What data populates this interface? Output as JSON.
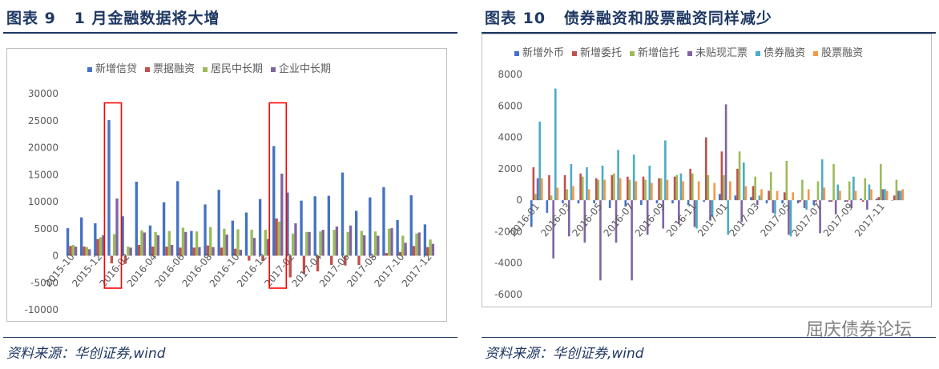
{
  "colors": {
    "blue": "#4472c4",
    "red": "#c0504d",
    "green": "#9bbb59",
    "purple": "#8064a2",
    "cyan": "#4bacc6",
    "orange": "#f79646",
    "highlight": "#ff0000",
    "title": "#1f3864"
  },
  "left": {
    "title": "图表 9   1 月金融数据将大增",
    "source": "资料来源：华创证券,wind",
    "chart_data": {
      "type": "bar",
      "ylim": [
        -10000,
        30000
      ],
      "yticks": [
        "30000",
        "25000",
        "20000",
        "15000",
        "10000",
        "5000",
        "0",
        "-5000",
        "-10000"
      ],
      "xticklabels": [
        "2015-10",
        "2015-12",
        "2016-02",
        "2016-04",
        "2016-06",
        "2016-08",
        "2016-10",
        "2016-12",
        "2017-02",
        "2017-04",
        "2017-06",
        "2017-08",
        "2017-10",
        "2017-12"
      ],
      "categories": [
        "2015-10",
        "2015-11",
        "2015-12",
        "2016-01",
        "2016-02",
        "2016-03",
        "2016-04",
        "2016-05",
        "2016-06",
        "2016-07",
        "2016-08",
        "2016-09",
        "2016-10",
        "2016-11",
        "2016-12",
        "2017-01",
        "2017-02",
        "2017-03",
        "2017-04",
        "2017-05",
        "2017-06",
        "2017-07",
        "2017-08",
        "2017-09",
        "2017-10",
        "2017-11",
        "2017-12"
      ],
      "legend_position": "top",
      "series": [
        {
          "name": "新增信贷",
          "color": "blue",
          "values": [
            5100,
            7100,
            6000,
            25100,
            7300,
            13700,
            5600,
            9900,
            13800,
            4600,
            9500,
            12200,
            6500,
            8000,
            10500,
            20300,
            11700,
            10200,
            11000,
            11100,
            15400,
            8300,
            10800,
            12700,
            6600,
            11200,
            5800
          ]
        },
        {
          "name": "票据融资",
          "color": "red",
          "values": [
            1800,
            1700,
            3100,
            -1400,
            -1500,
            2000,
            1700,
            1700,
            1500,
            1500,
            1900,
            1500,
            1300,
            -900,
            -1000,
            6900,
            -4000,
            -3300,
            -2900,
            -1700,
            -1800,
            -1700,
            -300,
            500,
            700,
            1800,
            1600
          ]
        },
        {
          "name": "居民中长期",
          "color": "green",
          "values": [
            2000,
            1600,
            3400,
            4000,
            1700,
            4700,
            4400,
            4600,
            5200,
            4500,
            5300,
            5000,
            4900,
            4800,
            4800,
            6300,
            4100,
            4400,
            4500,
            4800,
            4400,
            4600,
            4500,
            5000,
            3700,
            4100,
            3000
          ]
        },
        {
          "name": "企业中长期",
          "color": "purple",
          "values": [
            1700,
            1200,
            3800,
            10600,
            1500,
            4300,
            3800,
            2000,
            4400,
            1600,
            1600,
            3900,
            1100,
            3300,
            3100,
            15200,
            6000,
            4400,
            4800,
            5400,
            5600,
            3800,
            3700,
            5100,
            2400,
            4300,
            2200
          ]
        }
      ]
    }
  },
  "right": {
    "title": "图表 10   债券融资和股票融资同样减少",
    "source": "资料来源：华创证券,wind",
    "watermark": "屈庆债券论坛",
    "chart_data": {
      "type": "bar",
      "ylim": [
        -6000,
        8000
      ],
      "yticks": [
        "8000",
        "6000",
        "4000",
        "2000",
        "0",
        "-2000",
        "-4000",
        "-6000"
      ],
      "xticklabels": [
        "2016-01",
        "2016-03",
        "2016-05",
        "2016-07",
        "2016-09",
        "2016-11",
        "2017-01",
        "2017-03",
        "2017-05",
        "2017-07",
        "2017-09",
        "2017-11"
      ],
      "categories": [
        "2016-01",
        "2016-02",
        "2016-03",
        "2016-04",
        "2016-05",
        "2016-06",
        "2016-07",
        "2016-08",
        "2016-09",
        "2016-10",
        "2016-11",
        "2016-12",
        "2017-01",
        "2017-02",
        "2017-03",
        "2017-04",
        "2017-05",
        "2017-06",
        "2017-07",
        "2017-08",
        "2017-09",
        "2017-10",
        "2017-11",
        "2017-12"
      ],
      "legend_position": "top",
      "series": [
        {
          "name": "新增外币",
          "color": "blue",
          "values": [
            -1700,
            -800,
            -200,
            -200,
            -200,
            -500,
            -400,
            -300,
            -200,
            -200,
            -300,
            -100,
            400,
            300,
            200,
            -200,
            -200,
            -200,
            -300,
            -100,
            -100,
            100,
            100,
            0
          ]
        },
        {
          "name": "新增委托",
          "color": "red",
          "values": [
            2100,
            1600,
            1600,
            1700,
            1400,
            1600,
            1500,
            1500,
            1400,
            1500,
            2000,
            4000,
            3100,
            2000,
            900,
            600,
            500,
            -100,
            -100,
            -100,
            -100,
            -100,
            200,
            300
          ]
        },
        {
          "name": "新增信托",
          "color": "green",
          "values": [
            400,
            300,
            700,
            1500,
            1300,
            1700,
            1300,
            1300,
            1400,
            1600,
            1700,
            1600,
            1600,
            3100,
            1500,
            1800,
            2500,
            1300,
            1200,
            2300,
            1200,
            1400,
            2300,
            1300
          ]
        },
        {
          "name": "未贴现汇票",
          "color": "purple",
          "values": [
            1400,
            -3700,
            -2300,
            -2700,
            -5100,
            -2700,
            -5100,
            -2200,
            -1800,
            -1500,
            -1700,
            -1300,
            6100,
            -1400,
            -300,
            -800,
            -2200,
            -500,
            -2100,
            -900,
            -500,
            -600,
            700,
            600
          ]
        },
        {
          "name": "债券融资",
          "color": "cyan",
          "values": [
            5000,
            7100,
            2300,
            2100,
            2200,
            3200,
            2900,
            2200,
            3800,
            1700,
            -1800,
            -1000,
            -2200,
            2400,
            300,
            -900,
            -2300,
            -600,
            2600,
            1000,
            1500,
            1000,
            700,
            600
          ]
        },
        {
          "name": "股票融资",
          "color": "orange",
          "values": [
            1400,
            800,
            900,
            700,
            1300,
            1400,
            1200,
            1100,
            1300,
            1200,
            1200,
            1100,
            1200,
            900,
            700,
            600,
            500,
            700,
            800,
            600,
            600,
            700,
            600,
            700
          ]
        }
      ]
    }
  }
}
